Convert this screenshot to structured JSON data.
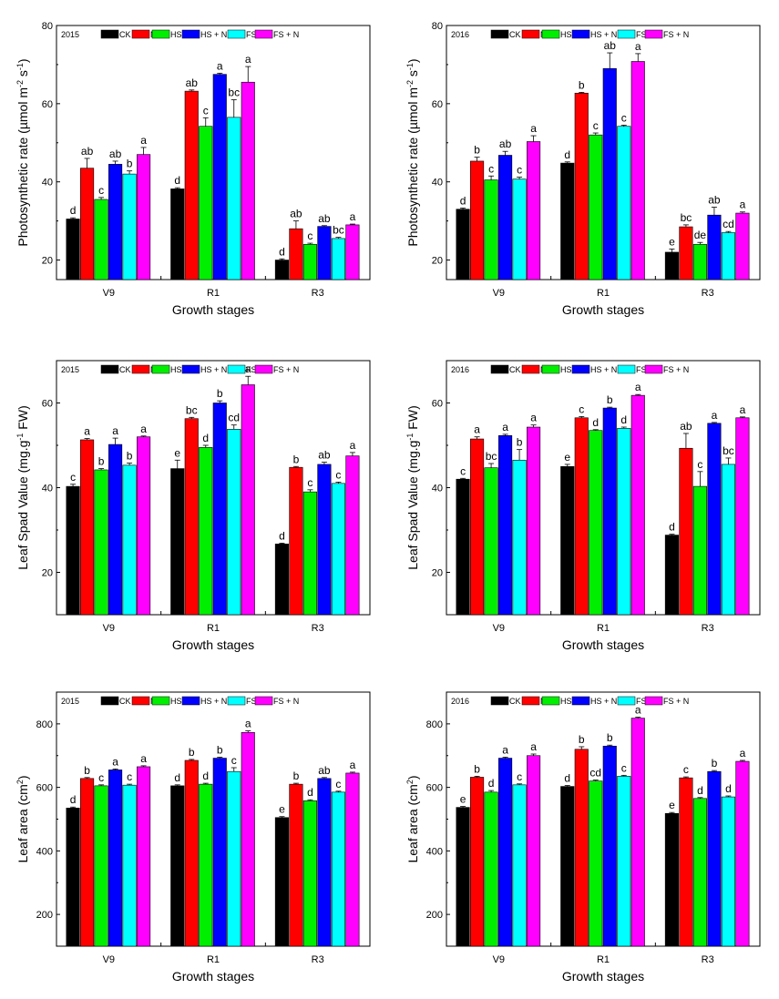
{
  "figure_title": "",
  "colors": {
    "CK": "#000000",
    "N": "#ff0000",
    "HS": "#00ee00",
    "HS + N": "#0000ff",
    "FS": "#00ffff",
    "FS + N": "#ff00ff"
  },
  "chart_data": [
    {
      "type": "bar",
      "year": "2015",
      "categories": [
        "V9",
        "R1",
        "R3"
      ],
      "xlabel": "Growth stages",
      "ylabel": "Photosynthetic rate (µmol m⁻² s⁻¹)",
      "ylim": [
        15,
        80
      ],
      "yticks": [
        20,
        40,
        60,
        80
      ],
      "legend_position": "top",
      "series": [
        {
          "name": "CK",
          "values": [
            30.5,
            38.2,
            20.0
          ],
          "errors": [
            0.3,
            0.3,
            0.3
          ],
          "letters": [
            "d",
            "d",
            "d"
          ]
        },
        {
          "name": "N",
          "values": [
            43.5,
            63.2,
            28.0
          ],
          "errors": [
            2.5,
            0.3,
            2.0
          ],
          "letters": [
            "ab",
            "ab",
            "ab"
          ]
        },
        {
          "name": "HS",
          "values": [
            35.5,
            54.2,
            24.0
          ],
          "errors": [
            0.5,
            2.2,
            0.3
          ],
          "letters": [
            "c",
            "c",
            "c"
          ]
        },
        {
          "name": "HS + N",
          "values": [
            44.5,
            67.5,
            28.6
          ],
          "errors": [
            0.8,
            0.3,
            0.2
          ],
          "letters": [
            "ab",
            "a",
            "ab"
          ]
        },
        {
          "name": "FS",
          "values": [
            42.0,
            56.5,
            25.5
          ],
          "errors": [
            0.8,
            4.5,
            0.3
          ],
          "letters": [
            "b",
            "bc",
            "bc"
          ]
        },
        {
          "name": "FS + N",
          "values": [
            47.0,
            65.5,
            29.0
          ],
          "errors": [
            1.8,
            4.0,
            0.2
          ],
          "letters": [
            "a",
            "a",
            "a"
          ]
        }
      ]
    },
    {
      "type": "bar",
      "year": "2016",
      "categories": [
        "V9",
        "R1",
        "R3"
      ],
      "xlabel": "Growth stages",
      "ylabel": "Photosynthetic rate (µmol m⁻² s⁻¹)",
      "ylim": [
        15,
        80
      ],
      "yticks": [
        20,
        40,
        60,
        80
      ],
      "legend_position": "top",
      "series": [
        {
          "name": "CK",
          "values": [
            33.0,
            44.8,
            22.0
          ],
          "errors": [
            0.3,
            0.3,
            0.8
          ],
          "letters": [
            "d",
            "d",
            "e"
          ]
        },
        {
          "name": "N",
          "values": [
            45.3,
            62.7,
            28.5
          ],
          "errors": [
            1.0,
            0.2,
            0.5
          ],
          "letters": [
            "b",
            "b",
            "bc"
          ]
        },
        {
          "name": "HS",
          "values": [
            40.5,
            52.0,
            24.0
          ],
          "errors": [
            1.0,
            0.5,
            0.5
          ],
          "letters": [
            "c",
            "c",
            "de"
          ]
        },
        {
          "name": "HS + N",
          "values": [
            46.8,
            69.0,
            31.5
          ],
          "errors": [
            1.0,
            4.0,
            2.0
          ],
          "letters": [
            "ab",
            "ab",
            "ab"
          ]
        },
        {
          "name": "FS",
          "values": [
            40.7,
            54.2,
            27.0
          ],
          "errors": [
            0.5,
            0.3,
            0.3
          ],
          "letters": [
            "c",
            "c",
            "cd"
          ]
        },
        {
          "name": "FS + N",
          "values": [
            50.3,
            70.8,
            32.0
          ],
          "errors": [
            1.5,
            2.0,
            0.3
          ],
          "letters": [
            "a",
            "a",
            "a"
          ]
        }
      ]
    },
    {
      "type": "bar",
      "year": "2015",
      "categories": [
        "V9",
        "R1",
        "R3"
      ],
      "xlabel": "Growth stages",
      "ylabel": "Leaf Spad Value (mg.g⁻¹ FW)",
      "ylim": [
        10,
        70
      ],
      "yticks": [
        20,
        40,
        60
      ],
      "legend_position": "top",
      "series": [
        {
          "name": "CK",
          "values": [
            40.3,
            44.5,
            26.7
          ],
          "errors": [
            0.5,
            2.0,
            0.2
          ],
          "letters": [
            "c",
            "e",
            "d"
          ]
        },
        {
          "name": "N",
          "values": [
            51.3,
            56.3,
            44.8
          ],
          "errors": [
            0.3,
            0.3,
            0.2
          ],
          "letters": [
            "a",
            "bc",
            "b"
          ]
        },
        {
          "name": "HS",
          "values": [
            44.2,
            49.5,
            39.0
          ],
          "errors": [
            0.3,
            0.5,
            0.5
          ],
          "letters": [
            "b",
            "d",
            "c"
          ]
        },
        {
          "name": "HS + N",
          "values": [
            50.2,
            60.0,
            45.5
          ],
          "errors": [
            1.5,
            0.5,
            0.5
          ],
          "letters": [
            "a",
            "b",
            "ab"
          ]
        },
        {
          "name": "FS",
          "values": [
            45.3,
            53.8,
            41.0
          ],
          "errors": [
            0.5,
            1.0,
            0.3
          ],
          "letters": [
            "b",
            "cd",
            "c"
          ]
        },
        {
          "name": "FS + N",
          "values": [
            52.0,
            64.3,
            47.5
          ],
          "errors": [
            0.2,
            2.0,
            0.8
          ],
          "letters": [
            "a",
            "a",
            "a"
          ]
        }
      ]
    },
    {
      "type": "bar",
      "year": "2016",
      "categories": [
        "V9",
        "R1",
        "R3"
      ],
      "xlabel": "Growth stages",
      "ylabel": "Leaf Spad Value (mg.g⁻¹ FW)",
      "ylim": [
        10,
        70
      ],
      "yticks": [
        20,
        40,
        60
      ],
      "legend_position": "top",
      "series": [
        {
          "name": "CK",
          "values": [
            42.0,
            45.0,
            28.8
          ],
          "errors": [
            0.2,
            0.5,
            0.2
          ],
          "letters": [
            "c",
            "e",
            "d"
          ]
        },
        {
          "name": "N",
          "values": [
            51.5,
            56.5,
            49.3
          ],
          "errors": [
            0.5,
            0.3,
            3.5
          ],
          "letters": [
            "a",
            "c",
            "ab"
          ]
        },
        {
          "name": "HS",
          "values": [
            44.7,
            53.5,
            40.3
          ],
          "errors": [
            1.0,
            0.2,
            3.5
          ],
          "letters": [
            "bc",
            "d",
            "c"
          ]
        },
        {
          "name": "HS + N",
          "values": [
            52.3,
            58.8,
            55.2
          ],
          "errors": [
            0.3,
            0.2,
            0.2
          ],
          "letters": [
            "a",
            "b",
            "a"
          ]
        },
        {
          "name": "FS",
          "values": [
            46.5,
            54.0,
            45.5
          ],
          "errors": [
            2.5,
            0.3,
            1.5
          ],
          "letters": [
            "b",
            "d",
            "bc"
          ]
        },
        {
          "name": "FS + N",
          "values": [
            54.3,
            61.8,
            56.5
          ],
          "errors": [
            0.5,
            0.2,
            0.2
          ],
          "letters": [
            "a",
            "a",
            "a"
          ]
        }
      ]
    },
    {
      "type": "bar",
      "year": "2015",
      "categories": [
        "V9",
        "R1",
        "R3"
      ],
      "xlabel": "Growth stages",
      "ylabel": "Leaf area (cm²)",
      "ylim": [
        100,
        900
      ],
      "yticks": [
        200,
        400,
        600,
        800
      ],
      "legend_position": "top",
      "series": [
        {
          "name": "CK",
          "values": [
            535,
            605,
            505
          ],
          "errors": [
            3,
            3,
            3
          ],
          "letters": [
            "d",
            "d",
            "e"
          ]
        },
        {
          "name": "N",
          "values": [
            628,
            685,
            610
          ],
          "errors": [
            3,
            3,
            3
          ],
          "letters": [
            "b",
            "b",
            "b"
          ]
        },
        {
          "name": "HS",
          "values": [
            605,
            610,
            558
          ],
          "errors": [
            3,
            3,
            3
          ],
          "letters": [
            "c",
            "d",
            "d"
          ]
        },
        {
          "name": "HS + N",
          "values": [
            655,
            692,
            628
          ],
          "errors": [
            3,
            3,
            3
          ],
          "letters": [
            "a",
            "b",
            "ab"
          ]
        },
        {
          "name": "FS",
          "values": [
            607,
            650,
            585
          ],
          "errors": [
            3,
            12,
            3
          ],
          "letters": [
            "c",
            "c",
            "c"
          ]
        },
        {
          "name": "FS + N",
          "values": [
            665,
            773,
            645
          ],
          "errors": [
            3,
            5,
            3
          ],
          "letters": [
            "a",
            "a",
            "a"
          ]
        }
      ]
    },
    {
      "type": "bar",
      "year": "2016",
      "categories": [
        "V9",
        "R1",
        "R3"
      ],
      "xlabel": "Growth stages",
      "ylabel": "Leaf area (cm²)",
      "ylim": [
        100,
        900
      ],
      "yticks": [
        200,
        400,
        600,
        800
      ],
      "legend_position": "top",
      "series": [
        {
          "name": "CK",
          "values": [
            537,
            603,
            518
          ],
          "errors": [
            3,
            3,
            3
          ],
          "letters": [
            "e",
            "d",
            "e"
          ]
        },
        {
          "name": "N",
          "values": [
            632,
            720,
            630
          ],
          "errors": [
            3,
            8,
            3
          ],
          "letters": [
            "b",
            "b",
            "c"
          ]
        },
        {
          "name": "HS",
          "values": [
            585,
            620,
            565
          ],
          "errors": [
            5,
            3,
            3
          ],
          "letters": [
            "d",
            "cd",
            "d"
          ]
        },
        {
          "name": "HS + N",
          "values": [
            692,
            730,
            650
          ],
          "errors": [
            3,
            3,
            3
          ],
          "letters": [
            "a",
            "b",
            "b"
          ]
        },
        {
          "name": "FS",
          "values": [
            608,
            635,
            570
          ],
          "errors": [
            3,
            3,
            3
          ],
          "letters": [
            "c",
            "c",
            "d"
          ]
        },
        {
          "name": "FS + N",
          "values": [
            700,
            818,
            682
          ],
          "errors": [
            5,
            3,
            3
          ],
          "letters": [
            "a",
            "a",
            "a"
          ]
        }
      ]
    }
  ]
}
